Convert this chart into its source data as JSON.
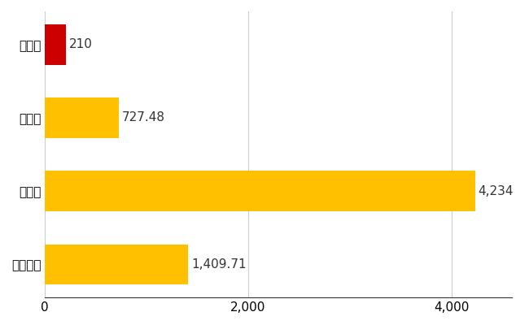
{
  "categories": [
    "全国平均",
    "県最大",
    "県平均",
    "忍野村"
  ],
  "values": [
    1409.71,
    4234,
    727.48,
    210
  ],
  "bar_colors": [
    "#FFC000",
    "#FFC000",
    "#FFC000",
    "#CC0000"
  ],
  "labels": [
    "1,409.71",
    "4,234",
    "727.48",
    "210"
  ],
  "xlim": [
    0,
    4600
  ],
  "xticks": [
    0,
    2000,
    4000
  ],
  "background_color": "#FFFFFF",
  "grid_color": "#CCCCCC",
  "bar_height": 0.55,
  "label_fontsize": 11,
  "tick_fontsize": 11
}
